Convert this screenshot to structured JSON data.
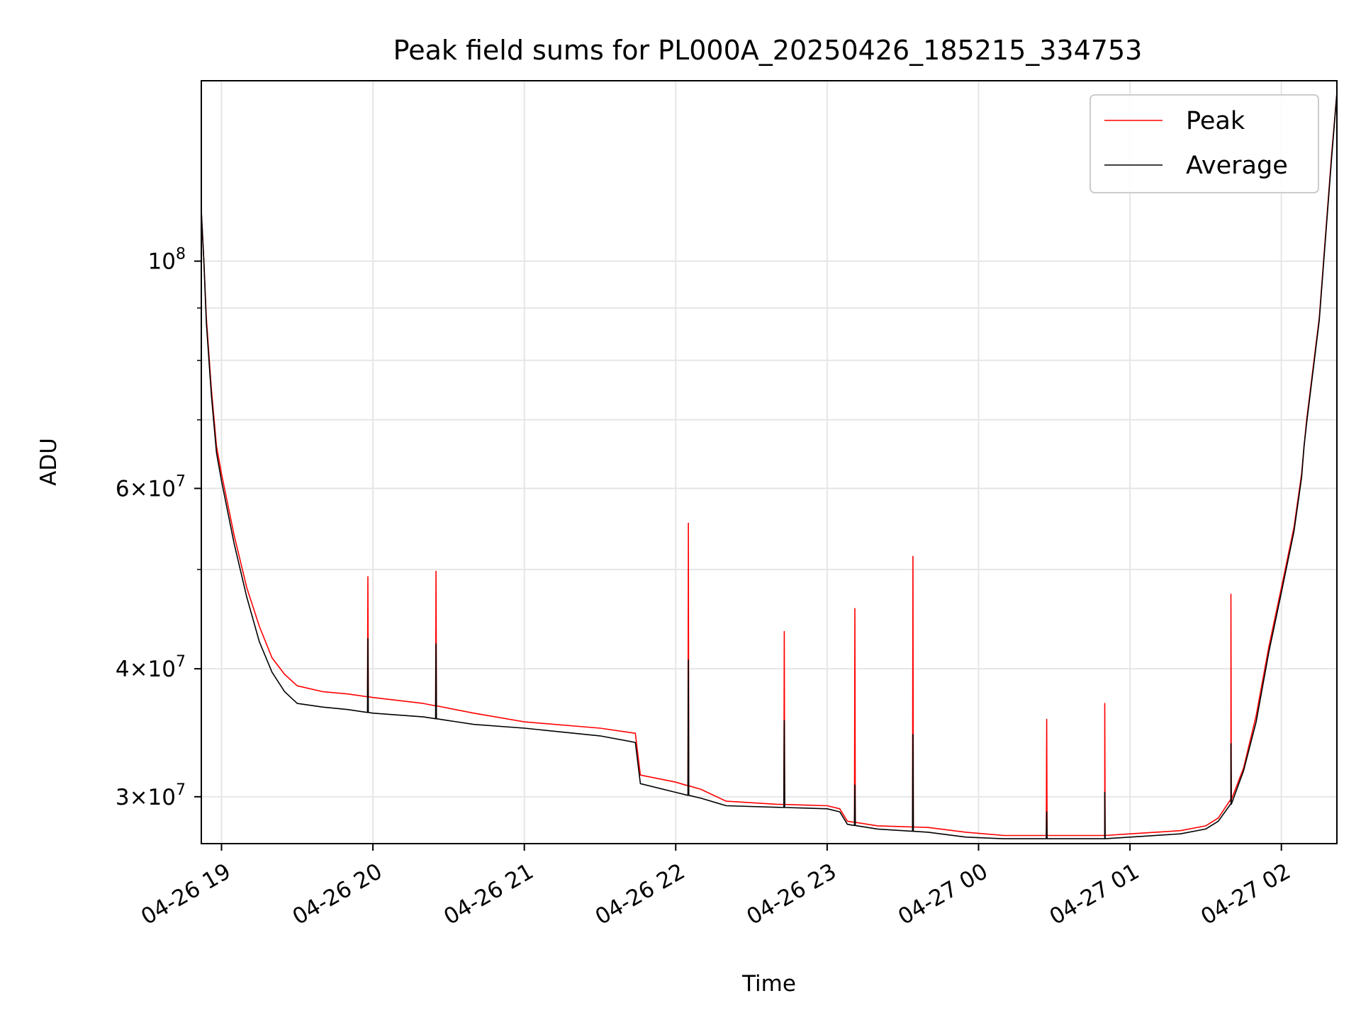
{
  "chart_data": {
    "type": "line",
    "title": "Peak field sums for PL000A_20250426_185215_334753",
    "xlabel": "Time",
    "ylabel": "ADU",
    "y_scale": "log",
    "ylim": [
      27000000,
      150000000
    ],
    "xlim": [
      "04-26 18:52",
      "04-27 02:22"
    ],
    "grid": true,
    "legend_position": "top-right",
    "x_ticks": [
      "04-26 19",
      "04-26 20",
      "04-26 21",
      "04-26 22",
      "04-26 23",
      "04-27 00",
      "04-27 01",
      "04-27 02"
    ],
    "y_major_ticks": [
      {
        "value": 100000000,
        "mantissa": "",
        "base": "10",
        "exp": "8"
      },
      {
        "value": 60000000,
        "mantissa": "6",
        "base": "10",
        "exp": "7"
      },
      {
        "value": 40000000,
        "mantissa": "4",
        "base": "10",
        "exp": "7"
      },
      {
        "value": 30000000,
        "mantissa": "3",
        "base": "10",
        "exp": "7"
      }
    ],
    "y_minor_ticks": [
      50000000,
      70000000,
      80000000,
      90000000
    ],
    "x": [
      "04-26 18:52",
      "04-26 18:53",
      "04-26 18:54",
      "04-26 18:56",
      "04-26 18:58",
      "04-26 19:00",
      "04-26 19:05",
      "04-26 19:10",
      "04-26 19:15",
      "04-26 19:20",
      "04-26 19:25",
      "04-26 19:30",
      "04-26 19:40",
      "04-26 19:50",
      "04-26 20:00",
      "04-26 20:20",
      "04-26 20:40",
      "04-26 21:00",
      "04-26 21:30",
      "04-26 21:44",
      "04-26 21:46",
      "04-26 22:00",
      "04-26 22:10",
      "04-26 22:20",
      "04-26 22:40",
      "04-26 23:00",
      "04-26 23:05",
      "04-26 23:08",
      "04-26 23:20",
      "04-26 23:40",
      "04-26 23:55",
      "04-27 00:10",
      "04-27 00:30",
      "04-27 00:50",
      "04-27 01:00",
      "04-27 01:20",
      "04-27 01:30",
      "04-27 01:35",
      "04-27 01:40",
      "04-27 01:45",
      "04-27 01:50",
      "04-27 01:55",
      "04-27 01:58",
      "04-27 02:00",
      "04-27 02:05",
      "04-27 02:08",
      "04-27 02:09",
      "04-27 02:10",
      "04-27 02:15",
      "04-27 02:20",
      "04-27 02:22"
    ],
    "series": [
      {
        "name": "Peak",
        "color": "#ff0000",
        "values": [
          112000000,
          100000000,
          88000000,
          75000000,
          66000000,
          62000000,
          54000000,
          48000000,
          44000000,
          41000000,
          39500000,
          38500000,
          38000000,
          37800000,
          37500000,
          37000000,
          36200000,
          35500000,
          35000000,
          34600000,
          31500000,
          31000000,
          30500000,
          29700000,
          29500000,
          29400000,
          29200000,
          28400000,
          28100000,
          28000000,
          27700000,
          27500000,
          27500000,
          27500000,
          27600000,
          27800000,
          28100000,
          28600000,
          29800000,
          32000000,
          36000000,
          42000000,
          45500000,
          48000000,
          55000000,
          62000000,
          66000000,
          70000000,
          88000000,
          128000000,
          146000000
        ],
        "spikes": [
          {
            "x": "04-26 19:58",
            "value": 49200000
          },
          {
            "x": "04-26 20:25",
            "value": 49800000
          },
          {
            "x": "04-26 22:05",
            "value": 55500000
          },
          {
            "x": "04-26 22:43",
            "value": 43500000
          },
          {
            "x": "04-26 23:11",
            "value": 45800000
          },
          {
            "x": "04-26 23:34",
            "value": 51500000
          },
          {
            "x": "04-27 00:27",
            "value": 35700000
          },
          {
            "x": "04-27 00:50",
            "value": 37000000
          },
          {
            "x": "04-27 01:40",
            "value": 47300000
          }
        ]
      },
      {
        "name": "Average",
        "color": "#000000",
        "values": [
          112000000,
          100000000,
          87000000,
          74000000,
          65000000,
          61000000,
          53000000,
          47000000,
          42500000,
          39700000,
          38000000,
          37000000,
          36700000,
          36500000,
          36200000,
          35900000,
          35300000,
          35000000,
          34400000,
          33900000,
          30900000,
          30300000,
          29900000,
          29400000,
          29300000,
          29200000,
          29000000,
          28200000,
          27900000,
          27700000,
          27400000,
          27300000,
          27300000,
          27300000,
          27400000,
          27600000,
          27900000,
          28400000,
          29500000,
          31800000,
          35500000,
          41500000,
          45000000,
          47500000,
          54500000,
          61500000,
          66000000,
          69500000,
          87500000,
          127000000,
          146000000
        ],
        "spikes": [
          {
            "x": "04-26 19:58",
            "value": 42800000
          },
          {
            "x": "04-26 20:25",
            "value": 42300000
          },
          {
            "x": "04-26 22:05",
            "value": 40800000
          },
          {
            "x": "04-26 22:43",
            "value": 35600000
          },
          {
            "x": "04-26 23:11",
            "value": 30800000
          },
          {
            "x": "04-26 23:34",
            "value": 34500000
          },
          {
            "x": "04-27 00:27",
            "value": 29000000
          },
          {
            "x": "04-27 00:50",
            "value": 30300000
          },
          {
            "x": "04-27 01:40",
            "value": 33800000
          }
        ]
      }
    ]
  }
}
